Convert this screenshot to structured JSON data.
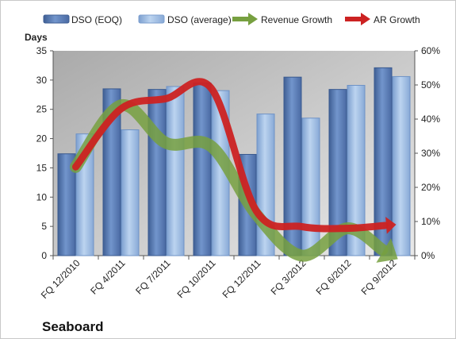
{
  "chart_data": {
    "type": "bar",
    "categories": [
      "FQ 12/2010",
      "FQ 4/2011",
      "FQ 7/2011",
      "FQ 10/2011",
      "FQ 12/2011",
      "FQ 3/2012",
      "FQ 6/2012",
      "FQ 9/2012"
    ],
    "series": [
      {
        "name": "DSO (EOQ)",
        "type": "bar",
        "axis": "left",
        "color": "#5b7db5",
        "values": [
          17.4,
          28.5,
          28.4,
          29.5,
          17.3,
          30.5,
          28.4,
          32.1
        ]
      },
      {
        "name": "DSO (average)",
        "type": "bar",
        "axis": "left",
        "color": "#9bbbe0",
        "values": [
          20.8,
          21.5,
          28.9,
          28.2,
          24.2,
          23.5,
          29.1,
          30.6
        ]
      },
      {
        "name": "Revenue Growth",
        "type": "line",
        "axis": "right",
        "color": "#77a040",
        "values": [
          0.26,
          0.44,
          0.33,
          0.32,
          0.12,
          0.0,
          0.08,
          0.0
        ]
      },
      {
        "name": "AR Growth",
        "type": "line",
        "axis": "right",
        "color": "#cc2222",
        "values": [
          0.26,
          0.43,
          0.46,
          0.49,
          0.13,
          0.085,
          0.08,
          0.09
        ]
      }
    ],
    "ylabel": "Days",
    "ylim": [
      0,
      35
    ],
    "yticks": [
      "0",
      "5",
      "10",
      "15",
      "20",
      "25",
      "30",
      "35"
    ],
    "y2lim": [
      0,
      0.6
    ],
    "y2ticks": [
      "0%",
      "10%",
      "20%",
      "30%",
      "40%",
      "50%",
      "60%"
    ],
    "grid": false,
    "legend": "top",
    "brand": "Seaboard"
  }
}
